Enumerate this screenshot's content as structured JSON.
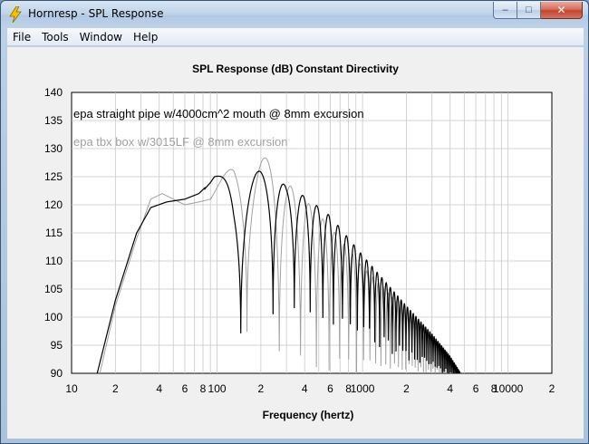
{
  "window": {
    "title": "Hornresp - SPL Response",
    "min_symbol": "‒",
    "max_symbol": "□",
    "close_symbol": "✕"
  },
  "menu": {
    "items": [
      "File",
      "Tools",
      "Window",
      "Help"
    ]
  },
  "chart_data": {
    "type": "line",
    "title": "SPL Response (dB)   Constant Directivity",
    "xlabel": "Frequency (hertz)",
    "ylabel": "",
    "xscale": "log",
    "xlim": [
      10,
      20000
    ],
    "ylim": [
      90,
      140
    ],
    "grid": true,
    "y_ticks": [
      90,
      95,
      100,
      105,
      110,
      115,
      120,
      125,
      130,
      135,
      140
    ],
    "x_tick_labels": [
      {
        "x": 10,
        "label": "10"
      },
      {
        "x": 20,
        "label": "2"
      },
      {
        "x": 40,
        "label": "4"
      },
      {
        "x": 60,
        "label": "6"
      },
      {
        "x": 80,
        "label": "8"
      },
      {
        "x": 100,
        "label": "100"
      },
      {
        "x": 200,
        "label": "2"
      },
      {
        "x": 400,
        "label": "4"
      },
      {
        "x": 600,
        "label": "6"
      },
      {
        "x": 800,
        "label": "8"
      },
      {
        "x": 1000,
        "label": "1000"
      },
      {
        "x": 2000,
        "label": "2"
      },
      {
        "x": 4000,
        "label": "4"
      },
      {
        "x": 6000,
        "label": "6"
      },
      {
        "x": 8000,
        "label": "8"
      },
      {
        "x": 10000,
        "label": "10000"
      },
      {
        "x": 20000,
        "label": "2"
      }
    ],
    "legend_position": "top-left",
    "series": [
      {
        "name": "epa straight pipe w/4000cm^2 mouth @ 8mm excursion",
        "color": "#000000",
        "fundamental_hz": 97,
        "envelope": [
          [
            10,
            50
          ],
          [
            15,
            90
          ],
          [
            20,
            103
          ],
          [
            28,
            115
          ],
          [
            35,
            119.5
          ],
          [
            45,
            120.5
          ],
          [
            60,
            121
          ],
          [
            75,
            122
          ],
          [
            90,
            124
          ],
          [
            96,
            125
          ],
          [
            120,
            125.5
          ],
          [
            200,
            126
          ],
          [
            250,
            126
          ],
          [
            300,
            123
          ],
          [
            400,
            121.5
          ],
          [
            600,
            118
          ],
          [
            1000,
            111
          ],
          [
            2000,
            102
          ],
          [
            3000,
            97
          ],
          [
            4000,
            93
          ],
          [
            5000,
            89
          ]
        ],
        "troughs": [
          [
            100,
            118
          ],
          [
            130,
            93
          ],
          [
            200,
            96
          ],
          [
            300,
            99
          ],
          [
            400,
            99
          ],
          [
            500,
            97
          ],
          [
            1000,
            95
          ],
          [
            2000,
            91
          ],
          [
            5000,
            88
          ]
        ]
      },
      {
        "name": "epa tbx box w/3015LF @ 8mm excursion",
        "color": "#a0a0a0",
        "fundamental_hz": 107,
        "envelope": [
          [
            10,
            50
          ],
          [
            15,
            88
          ],
          [
            20,
            102
          ],
          [
            28,
            114
          ],
          [
            35,
            121
          ],
          [
            42,
            122
          ],
          [
            50,
            121
          ],
          [
            60,
            120
          ],
          [
            75,
            120.5
          ],
          [
            90,
            121
          ],
          [
            110,
            125
          ],
          [
            130,
            128
          ],
          [
            200,
            128.5
          ],
          [
            250,
            128
          ],
          [
            300,
            124
          ],
          [
            400,
            121
          ],
          [
            600,
            116
          ],
          [
            1000,
            109
          ],
          [
            2000,
            101
          ],
          [
            3000,
            97
          ],
          [
            4000,
            93
          ],
          [
            5000,
            89
          ]
        ],
        "troughs": [
          [
            100,
            119
          ],
          [
            150,
            97
          ],
          [
            200,
            90
          ],
          [
            300,
            88
          ],
          [
            1000,
            88
          ],
          [
            5000,
            88
          ]
        ]
      }
    ]
  }
}
